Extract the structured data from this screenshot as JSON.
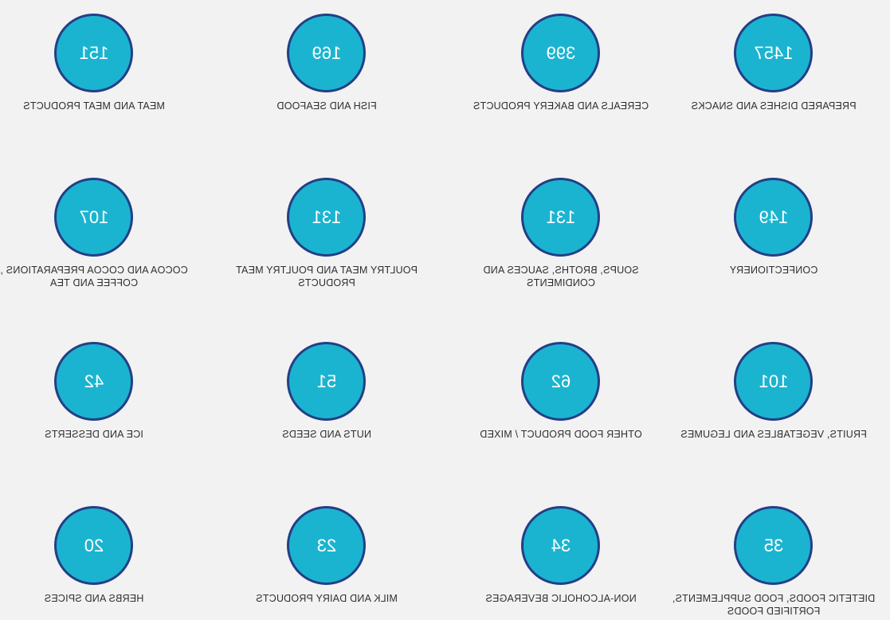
{
  "colors": {
    "background": "#f2f2f2",
    "circle_fill": "#1bb4d0",
    "circle_border": "#233f86",
    "label_text": "#2f2f2f"
  },
  "categories": [
    {
      "count": "1457",
      "label": "PREPARED DISHES AND SNACKS"
    },
    {
      "count": "399",
      "label": "CEREALS AND BAKERY PRODUCTS"
    },
    {
      "count": "169",
      "label": "FISH AND SEAFOOD"
    },
    {
      "count": "151",
      "label": "MEAT AND MEAT PRODUCTS"
    },
    {
      "count": "149",
      "label": "CONFECTIONERY"
    },
    {
      "count": "131",
      "label": "SOUPS, BROTHS, SAUCES AND CONDIMENTS"
    },
    {
      "count": "131",
      "label": "POULTRY MEAT AND POULTRY MEAT PRODUCTS"
    },
    {
      "count": "107",
      "label": "COCOA AND COCOA PREPARATIONS , COFFEE AND TEA"
    },
    {
      "count": "101",
      "label": "FRUITS, VEGETABLES AND LEGUMES"
    },
    {
      "count": "62",
      "label": "OTHER FOOD PRODUCT / MIXED"
    },
    {
      "count": "51",
      "label": "NUTS AND SEEDS"
    },
    {
      "count": "42",
      "label": "ICE AND DESSERTS"
    },
    {
      "count": "35",
      "label": "DIETETIC FOODS, FOOD SUPPLEMENTS, FORTIFIED FOODS"
    },
    {
      "count": "34",
      "label": "NON-ALCOHOLIC BEVERAGES"
    },
    {
      "count": "23",
      "label": "MILK AND DAIRY PRODUCTS"
    },
    {
      "count": "20",
      "label": "HERBS AND SPICES"
    }
  ]
}
